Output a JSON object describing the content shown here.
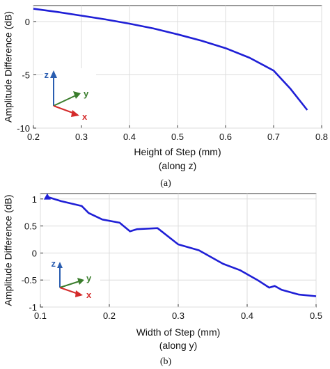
{
  "chart_data": [
    {
      "type": "line",
      "panel": "a",
      "caption": "(a)",
      "xlabel": "Height of Step (mm)",
      "xlabel_sub": "(along z)",
      "ylabel": "Amplitude Difference (dB)",
      "xlim": [
        0.2,
        0.8
      ],
      "ylim": [
        -10,
        1.5
      ],
      "xticks": [
        0.2,
        0.3,
        0.4,
        0.5,
        0.6,
        0.7,
        0.8
      ],
      "xtick_labels": [
        "0.2",
        "0.3",
        "0.4",
        "0.5",
        "0.6",
        "0.7",
        "0.8"
      ],
      "yticks": [
        -10,
        -5,
        0
      ],
      "ytick_labels": [
        "-10",
        "-5",
        "0"
      ],
      "grid": true,
      "series": [
        {
          "color": "#1f1fd6",
          "x": [
            0.2,
            0.25,
            0.3,
            0.35,
            0.4,
            0.45,
            0.5,
            0.55,
            0.6,
            0.65,
            0.7,
            0.735,
            0.77
          ],
          "y": [
            1.2,
            0.9,
            0.55,
            0.2,
            -0.2,
            -0.65,
            -1.2,
            -1.8,
            -2.5,
            -3.4,
            -4.6,
            -6.3,
            -8.3
          ]
        }
      ],
      "axes_inset": {
        "z": "z",
        "y": "y",
        "x": "x"
      }
    },
    {
      "type": "line",
      "panel": "b",
      "caption": "(b)",
      "xlabel": "Width of Step (mm)",
      "xlabel_sub": "(along y)",
      "ylabel": "Amplitude Difference (dB)",
      "xlim": [
        0.1,
        0.5
      ],
      "ylim": [
        -1,
        1.1
      ],
      "xticks": [
        0.1,
        0.2,
        0.3,
        0.4,
        0.5
      ],
      "xtick_labels": [
        "0.1",
        "0.2",
        "0.3",
        "0.4",
        "0.5"
      ],
      "yticks": [
        -1,
        -0.5,
        0,
        0.5,
        1
      ],
      "ytick_labels": [
        "-1",
        "-0.5",
        "0",
        "0.5",
        "1"
      ],
      "grid": true,
      "series": [
        {
          "color": "#1f1fd6",
          "marker_first": "triangle",
          "x": [
            0.11,
            0.13,
            0.16,
            0.17,
            0.19,
            0.215,
            0.23,
            0.24,
            0.27,
            0.3,
            0.33,
            0.365,
            0.39,
            0.415,
            0.432,
            0.44,
            0.45,
            0.475,
            0.5
          ],
          "y": [
            1.04,
            0.96,
            0.87,
            0.74,
            0.62,
            0.56,
            0.4,
            0.44,
            0.46,
            0.16,
            0.05,
            -0.2,
            -0.32,
            -0.5,
            -0.64,
            -0.61,
            -0.68,
            -0.77,
            -0.8
          ]
        }
      ],
      "axes_inset": {
        "z": "z",
        "y": "y",
        "x": "x"
      }
    }
  ]
}
